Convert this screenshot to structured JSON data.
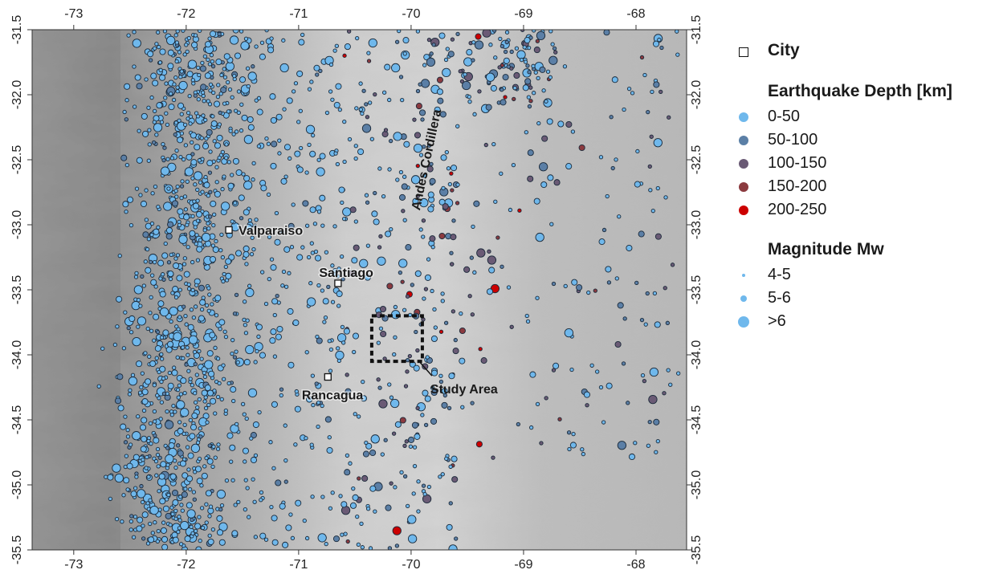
{
  "map": {
    "x_ticks": [
      "-73",
      "-72",
      "-71",
      "-70",
      "-69",
      "-68"
    ],
    "y_ticks": [
      "-31.5",
      "-32.0",
      "-32.5",
      "-33.0",
      "-33.5",
      "-34.0",
      "-34.5",
      "-35.0",
      "-35.5"
    ],
    "cities": [
      {
        "name": "Valparaiso",
        "lon": -71.62,
        "lat": -33.04
      },
      {
        "name": "Santiago",
        "lon": -70.65,
        "lat": -33.45
      },
      {
        "name": "Rancagua",
        "lon": -70.74,
        "lat": -34.17
      }
    ],
    "region_label": "Andes Cordillera",
    "study_area": {
      "label": "Study Area",
      "lon_range": [
        -70.35,
        -69.9
      ],
      "lat_range": [
        -33.7,
        -34.05
      ]
    }
  },
  "legend": {
    "city_title": "City",
    "depth_title": "Earthquake Depth [km]",
    "depth_classes": [
      {
        "label": "0-50",
        "color": "#6fb8ec"
      },
      {
        "label": "50-100",
        "color": "#5b7fa6"
      },
      {
        "label": "100-150",
        "color": "#6a5a75"
      },
      {
        "label": "150-200",
        "color": "#8b3a3f"
      },
      {
        "label": "200-250",
        "color": "#cc0000"
      }
    ],
    "magnitude_title": "Magnitude Mw",
    "magnitude_classes": [
      {
        "label": "4-5",
        "size": 4
      },
      {
        "label": "5-6",
        "size": 8
      },
      {
        "label": ">6",
        "size": 14
      }
    ]
  }
}
